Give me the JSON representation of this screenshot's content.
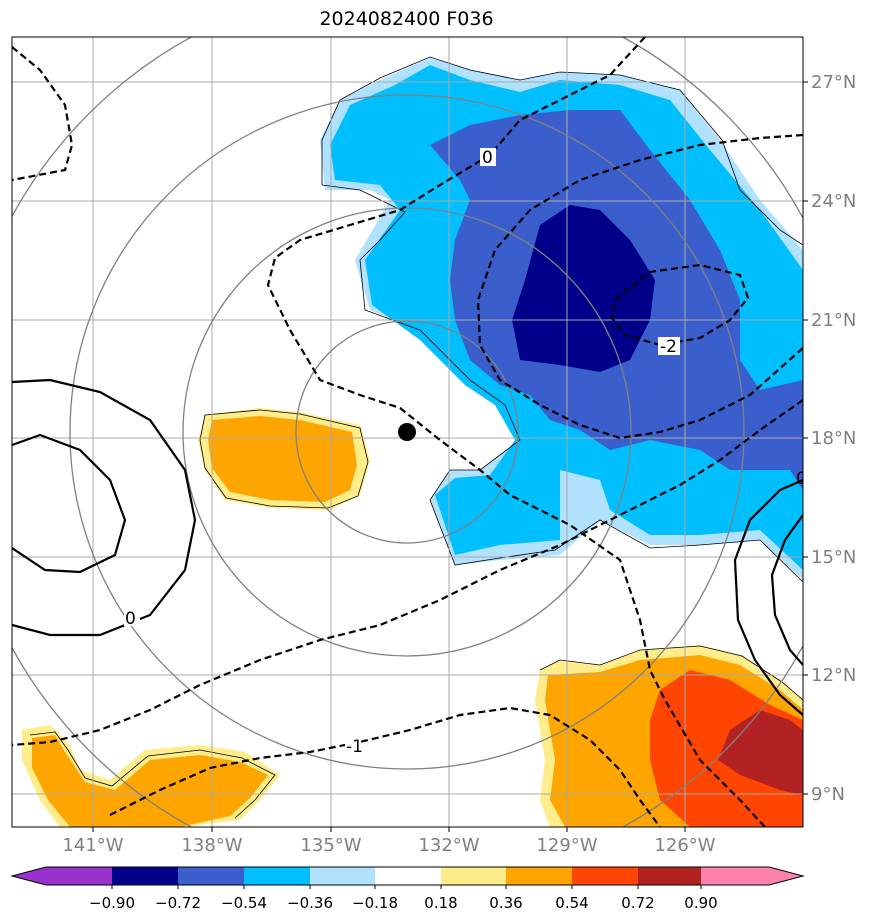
{
  "title": "2024082400 F036",
  "map": {
    "lat_ticks": [
      "27°N",
      "24°N",
      "21°N",
      "18°N",
      "15°N",
      "12°N",
      "9°N"
    ],
    "lon_ticks": [
      "141°W",
      "138°W",
      "135°W",
      "132°W",
      "129°W",
      "126°W"
    ],
    "storm_center": {
      "lon": "133.2°W",
      "lat": "18.2°N"
    },
    "contour_labels": [
      "0",
      "-2",
      "0",
      "-1",
      "0"
    ]
  },
  "colorbar": {
    "labels": [
      "−0.90",
      "−0.72",
      "−0.54",
      "−0.36",
      "−0.18",
      "0.18",
      "0.36",
      "0.54",
      "0.72",
      "0.90"
    ],
    "colors": [
      "#9932cc",
      "#00008b",
      "#3a5fcd",
      "#00bfff",
      "#b0e2ff",
      "#ffffff",
      "#ffec8b",
      "#ffa500",
      "#ff4500",
      "#b22222",
      "#ff82ab"
    ]
  }
}
